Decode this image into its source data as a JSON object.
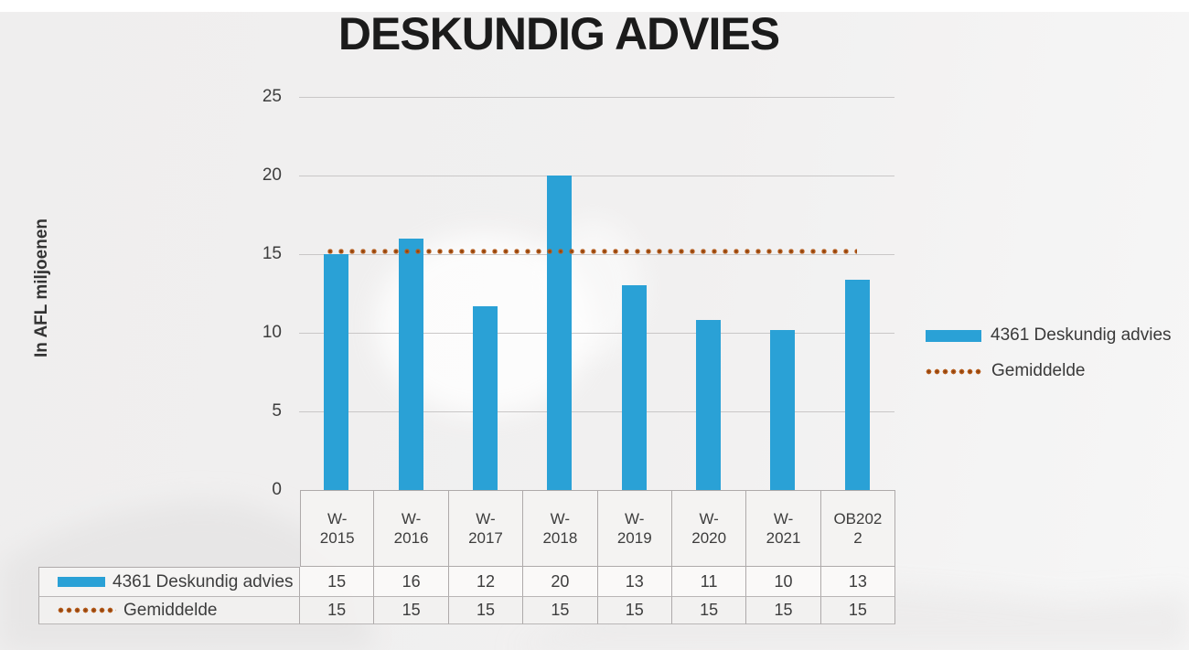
{
  "title": "DESKUNDIG ADVIES",
  "y_axis": {
    "title": "In AFL miljoenen",
    "tick_labels": [
      "0",
      "5",
      "10",
      "15",
      "20",
      "25"
    ]
  },
  "legend": {
    "items": [
      {
        "label": "4361 Deskundig advies",
        "swatch": "bar",
        "color": "#2AA1D6"
      },
      {
        "label": "Gemiddelde",
        "swatch": "dotted-line",
        "color": "#B85E1E"
      }
    ]
  },
  "chart_data": {
    "type": "bar",
    "title": "DESKUNDIG ADVIES",
    "xlabel": "",
    "ylabel": "In AFL miljoenen",
    "ylim": [
      0,
      25
    ],
    "yticks": [
      0,
      5,
      10,
      15,
      20,
      25
    ],
    "grid": true,
    "legend_position": "right",
    "categories": [
      "W-2015",
      "W-2016",
      "W-2017",
      "W-2018",
      "W-2019",
      "W-2020",
      "W-2021",
      "OB2022"
    ],
    "series": [
      {
        "name": "4361 Deskundig advies",
        "type": "bar",
        "color": "#2AA1D6",
        "values": [
          15,
          16,
          12,
          20,
          13,
          11,
          10,
          13
        ],
        "values_as_drawn": [
          15,
          16,
          11.7,
          20,
          13,
          10.8,
          10.2,
          13.4
        ]
      },
      {
        "name": "Gemiddelde",
        "type": "line",
        "line_style": "dotted",
        "color": "#B85E1E",
        "values": [
          15,
          15,
          15,
          15,
          15,
          15,
          15,
          15
        ],
        "line_level_as_drawn": 15.2
      }
    ]
  },
  "table": {
    "column_headers": [
      "W-2015",
      "W-2016",
      "W-2017",
      "W-2018",
      "W-2019",
      "W-2020",
      "W-2021",
      "OB2022"
    ],
    "rows": [
      {
        "label": "4361 Deskundig advies",
        "swatch": "bar",
        "values": [
          "15",
          "16",
          "12",
          "20",
          "13",
          "11",
          "10",
          "13"
        ]
      },
      {
        "label": "Gemiddelde",
        "swatch": "dotted-line",
        "values": [
          "15",
          "15",
          "15",
          "15",
          "15",
          "15",
          "15",
          "15"
        ]
      }
    ]
  },
  "colors": {
    "bar": "#2AA1D6",
    "average_dot": "#B85E1E",
    "gridline": "#c9c7c7",
    "text": "#3d3d3d",
    "title_text": "#1b1b1b",
    "background": "#f0efef"
  }
}
